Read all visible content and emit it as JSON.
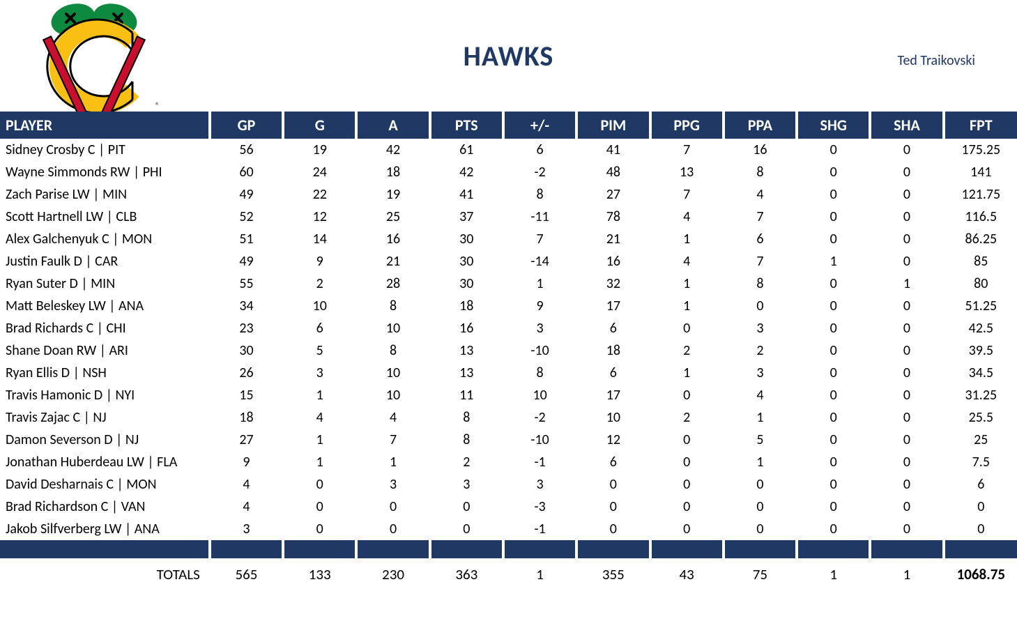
{
  "header": {
    "title": "HAWKS",
    "manager": "Ted Traikovski"
  },
  "colors": {
    "header_bg": "#1f3864",
    "header_text": "#ffffff",
    "title_text": "#1f3864",
    "body_bg": "#ffffff",
    "logo_green": "#0d8a3f",
    "logo_yellow": "#f9c013",
    "logo_red": "#c8102e",
    "logo_black": "#000000"
  },
  "table": {
    "columns": [
      "PLAYER",
      "GP",
      "G",
      "A",
      "PTS",
      "+/-",
      "PIM",
      "PPG",
      "PPA",
      "SHG",
      "SHA",
      "FPT"
    ],
    "rows": [
      [
        "Sidney Crosby C | PIT",
        "56",
        "19",
        "42",
        "61",
        "6",
        "41",
        "7",
        "16",
        "0",
        "0",
        "175.25"
      ],
      [
        "Wayne Simmonds RW | PHI",
        "60",
        "24",
        "18",
        "42",
        "-2",
        "48",
        "13",
        "8",
        "0",
        "0",
        "141"
      ],
      [
        "Zach Parise LW | MIN",
        "49",
        "22",
        "19",
        "41",
        "8",
        "27",
        "7",
        "4",
        "0",
        "0",
        "121.75"
      ],
      [
        "Scott Hartnell LW | CLB",
        "52",
        "12",
        "25",
        "37",
        "-11",
        "78",
        "4",
        "7",
        "0",
        "0",
        "116.5"
      ],
      [
        "Alex Galchenyuk C | MON",
        "51",
        "14",
        "16",
        "30",
        "7",
        "21",
        "1",
        "6",
        "0",
        "0",
        "86.25"
      ],
      [
        "Justin Faulk D | CAR",
        "49",
        "9",
        "21",
        "30",
        "-14",
        "16",
        "4",
        "7",
        "1",
        "0",
        "85"
      ],
      [
        "Ryan Suter D | MIN",
        "55",
        "2",
        "28",
        "30",
        "1",
        "32",
        "1",
        "8",
        "0",
        "1",
        "80"
      ],
      [
        "Matt Beleskey LW | ANA",
        "34",
        "10",
        "8",
        "18",
        "9",
        "17",
        "1",
        "0",
        "0",
        "0",
        "51.25"
      ],
      [
        "Brad Richards C | CHI",
        "23",
        "6",
        "10",
        "16",
        "3",
        "6",
        "0",
        "3",
        "0",
        "0",
        "42.5"
      ],
      [
        "Shane Doan RW | ARI",
        "30",
        "5",
        "8",
        "13",
        "-10",
        "18",
        "2",
        "2",
        "0",
        "0",
        "39.5"
      ],
      [
        "Ryan Ellis D | NSH",
        "26",
        "3",
        "10",
        "13",
        "8",
        "6",
        "1",
        "3",
        "0",
        "0",
        "34.5"
      ],
      [
        "Travis Hamonic D | NYI",
        "15",
        "1",
        "10",
        "11",
        "10",
        "17",
        "0",
        "4",
        "0",
        "0",
        "31.25"
      ],
      [
        "Travis Zajac C | NJ",
        "18",
        "4",
        "4",
        "8",
        "-2",
        "10",
        "2",
        "1",
        "0",
        "0",
        "25.5"
      ],
      [
        "Damon Severson D | NJ",
        "27",
        "1",
        "7",
        "8",
        "-10",
        "12",
        "0",
        "5",
        "0",
        "0",
        "25"
      ],
      [
        "Jonathan Huberdeau LW | FLA",
        "9",
        "1",
        "1",
        "2",
        "-1",
        "6",
        "0",
        "1",
        "0",
        "0",
        "7.5"
      ],
      [
        "David Desharnais C | MON",
        "4",
        "0",
        "3",
        "3",
        "3",
        "0",
        "0",
        "0",
        "0",
        "0",
        "6"
      ],
      [
        "Brad Richardson C | VAN",
        "4",
        "0",
        "0",
        "0",
        "-3",
        "0",
        "0",
        "0",
        "0",
        "0",
        "0"
      ],
      [
        "Jakob Silfverberg LW | ANA",
        "3",
        "0",
        "0",
        "0",
        "-1",
        "0",
        "0",
        "0",
        "0",
        "0",
        "0"
      ]
    ],
    "totals_label": "TOTALS",
    "totals": [
      "565",
      "133",
      "230",
      "363",
      "1",
      "355",
      "43",
      "75",
      "1",
      "1",
      "1068.75"
    ]
  }
}
